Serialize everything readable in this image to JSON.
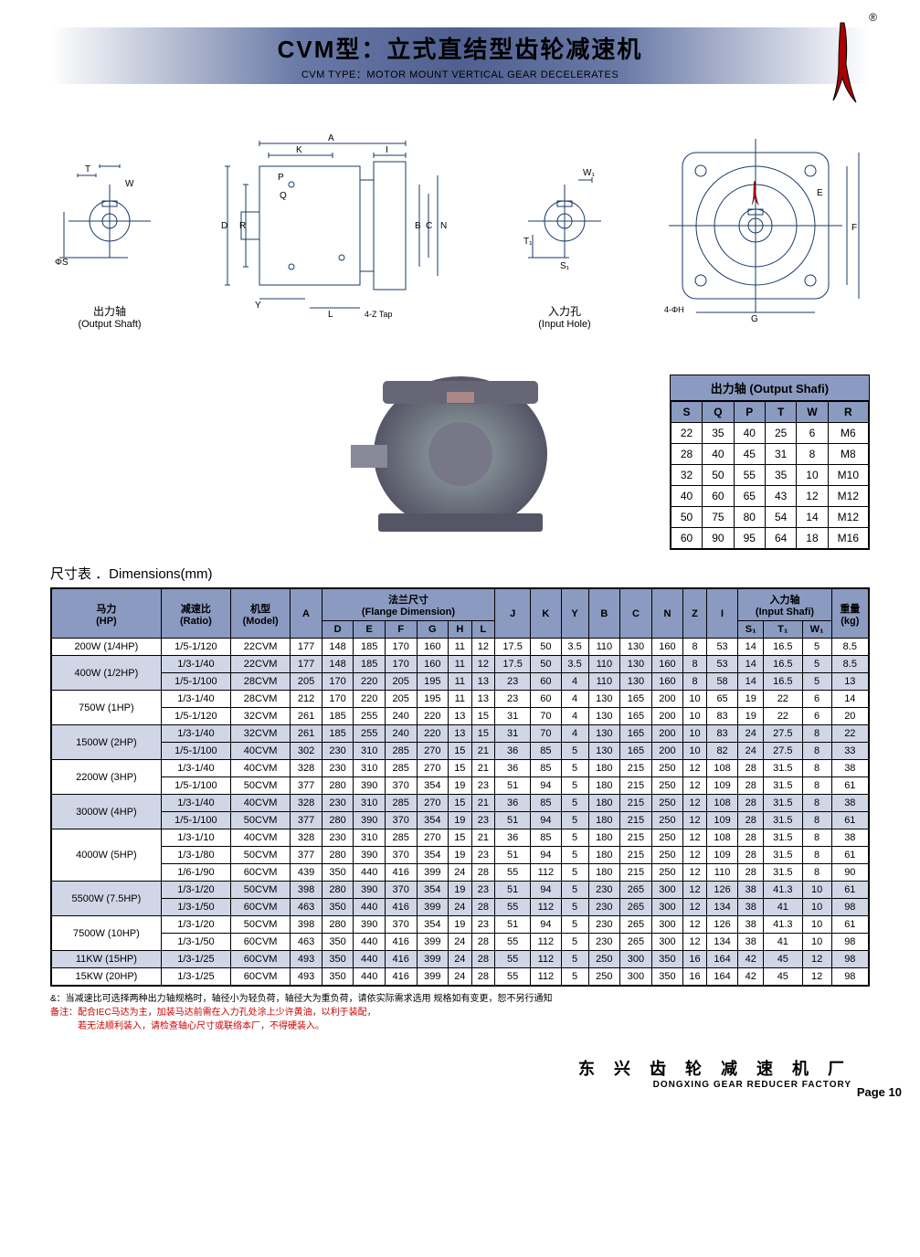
{
  "header": {
    "title_cn": "CVM型：立式直结型齿轮减速机",
    "title_en": "CVM TYPE：MOTOR MOUNT VERTICAL GEAR DECELERATES"
  },
  "diagrams": {
    "output_shaft": {
      "label_cn": "出力轴",
      "label_en": "(Output Shaft)",
      "dims": [
        "T",
        "W",
        "ΦS"
      ]
    },
    "main": {
      "dims": [
        "A",
        "K",
        "I",
        "P",
        "Q",
        "D",
        "R",
        "B",
        "C",
        "N",
        "Y",
        "L",
        "4-Z Tap"
      ]
    },
    "input_hole": {
      "label_cn": "入力孔",
      "label_en": "(Input Hole)",
      "dims": [
        "W₁",
        "T₁",
        "S₁"
      ]
    },
    "flange": {
      "dims": [
        "E",
        "F",
        "G",
        "4-ΦH"
      ]
    }
  },
  "output_shaft_table": {
    "title": "出力轴  (Output Shafi)",
    "headers": [
      "S",
      "Q",
      "P",
      "T",
      "W",
      "R"
    ],
    "rows": [
      [
        "22",
        "35",
        "40",
        "25",
        "6",
        "M6"
      ],
      [
        "28",
        "40",
        "45",
        "31",
        "8",
        "M8"
      ],
      [
        "32",
        "50",
        "55",
        "35",
        "10",
        "M10"
      ],
      [
        "40",
        "60",
        "65",
        "43",
        "12",
        "M12"
      ],
      [
        "50",
        "75",
        "80",
        "54",
        "14",
        "M12"
      ],
      [
        "60",
        "90",
        "95",
        "64",
        "18",
        "M16"
      ]
    ]
  },
  "dim_title": "尺寸表 ．Dimensions(mm)",
  "main_table": {
    "headers": {
      "hp": "马力\n(HP)",
      "ratio": "减速比\n(Ratio)",
      "model": "机型\n(Model)",
      "a": "A",
      "flange": "法兰尺寸\n(Flange Dimension)",
      "flange_sub": [
        "D",
        "E",
        "F",
        "G",
        "H",
        "L"
      ],
      "j": "J",
      "k": "K",
      "y": "Y",
      "b": "B",
      "c": "C",
      "n": "N",
      "z": "Z",
      "i": "I",
      "input": "入力轴\n(Input Shafi)",
      "input_sub": [
        "S₁",
        "T₁",
        "W₁"
      ],
      "weight": "重量\n(kg)"
    },
    "rows": [
      {
        "hp": "200W (1/4HP)",
        "ratio": "1/5-1/120",
        "model": "22CVM",
        "a": "177",
        "d": "148",
        "e": "185",
        "f": "170",
        "g": "160",
        "h": "11",
        "l": "12",
        "j": "17.5",
        "k": "50",
        "y": "3.5",
        "b": "110",
        "c": "130",
        "n": "160",
        "z": "8",
        "i": "53",
        "s1": "14",
        "t1": "16.5",
        "w1": "5",
        "wt": "8.5",
        "alt": false,
        "span": 1
      },
      {
        "hp": "400W (1/2HP)",
        "ratio": "1/3-1/40",
        "model": "22CVM",
        "a": "177",
        "d": "148",
        "e": "185",
        "f": "170",
        "g": "160",
        "h": "11",
        "l": "12",
        "j": "17.5",
        "k": "50",
        "y": "3.5",
        "b": "110",
        "c": "130",
        "n": "160",
        "z": "8",
        "i": "53",
        "s1": "14",
        "t1": "16.5",
        "w1": "5",
        "wt": "8.5",
        "alt": true,
        "span": 2
      },
      {
        "hp": "",
        "ratio": "1/5-1/100",
        "model": "28CVM",
        "a": "205",
        "d": "170",
        "e": "220",
        "f": "205",
        "g": "195",
        "h": "11",
        "l": "13",
        "j": "23",
        "k": "60",
        "y": "4",
        "b": "110",
        "c": "130",
        "n": "160",
        "z": "8",
        "i": "58",
        "s1": "14",
        "t1": "16.5",
        "w1": "5",
        "wt": "13",
        "alt": true
      },
      {
        "hp": "750W (1HP)",
        "ratio": "1/3-1/40",
        "model": "28CVM",
        "a": "212",
        "d": "170",
        "e": "220",
        "f": "205",
        "g": "195",
        "h": "11",
        "l": "13",
        "j": "23",
        "k": "60",
        "y": "4",
        "b": "130",
        "c": "165",
        "n": "200",
        "z": "10",
        "i": "65",
        "s1": "19",
        "t1": "22",
        "w1": "6",
        "wt": "14",
        "alt": false,
        "span": 2
      },
      {
        "hp": "",
        "ratio": "1/5-1/120",
        "model": "32CVM",
        "a": "261",
        "d": "185",
        "e": "255",
        "f": "240",
        "g": "220",
        "h": "13",
        "l": "15",
        "j": "31",
        "k": "70",
        "y": "4",
        "b": "130",
        "c": "165",
        "n": "200",
        "z": "10",
        "i": "83",
        "s1": "19",
        "t1": "22",
        "w1": "6",
        "wt": "20",
        "alt": false
      },
      {
        "hp": "1500W (2HP)",
        "ratio": "1/3-1/40",
        "model": "32CVM",
        "a": "261",
        "d": "185",
        "e": "255",
        "f": "240",
        "g": "220",
        "h": "13",
        "l": "15",
        "j": "31",
        "k": "70",
        "y": "4",
        "b": "130",
        "c": "165",
        "n": "200",
        "z": "10",
        "i": "83",
        "s1": "24",
        "t1": "27.5",
        "w1": "8",
        "wt": "22",
        "alt": true,
        "span": 2
      },
      {
        "hp": "",
        "ratio": "1/5-1/100",
        "model": "40CVM",
        "a": "302",
        "d": "230",
        "e": "310",
        "f": "285",
        "g": "270",
        "h": "15",
        "l": "21",
        "j": "36",
        "k": "85",
        "y": "5",
        "b": "130",
        "c": "165",
        "n": "200",
        "z": "10",
        "i": "82",
        "s1": "24",
        "t1": "27.5",
        "w1": "8",
        "wt": "33",
        "alt": true
      },
      {
        "hp": "2200W (3HP)",
        "ratio": "1/3-1/40",
        "model": "40CVM",
        "a": "328",
        "d": "230",
        "e": "310",
        "f": "285",
        "g": "270",
        "h": "15",
        "l": "21",
        "j": "36",
        "k": "85",
        "y": "5",
        "b": "180",
        "c": "215",
        "n": "250",
        "z": "12",
        "i": "108",
        "s1": "28",
        "t1": "31.5",
        "w1": "8",
        "wt": "38",
        "alt": false,
        "span": 2
      },
      {
        "hp": "",
        "ratio": "1/5-1/100",
        "model": "50CVM",
        "a": "377",
        "d": "280",
        "e": "390",
        "f": "370",
        "g": "354",
        "h": "19",
        "l": "23",
        "j": "51",
        "k": "94",
        "y": "5",
        "b": "180",
        "c": "215",
        "n": "250",
        "z": "12",
        "i": "109",
        "s1": "28",
        "t1": "31.5",
        "w1": "8",
        "wt": "61",
        "alt": false
      },
      {
        "hp": "3000W (4HP)",
        "ratio": "1/3-1/40",
        "model": "40CVM",
        "a": "328",
        "d": "230",
        "e": "310",
        "f": "285",
        "g": "270",
        "h": "15",
        "l": "21",
        "j": "36",
        "k": "85",
        "y": "5",
        "b": "180",
        "c": "215",
        "n": "250",
        "z": "12",
        "i": "108",
        "s1": "28",
        "t1": "31.5",
        "w1": "8",
        "wt": "38",
        "alt": true,
        "span": 2
      },
      {
        "hp": "",
        "ratio": "1/5-1/100",
        "model": "50CVM",
        "a": "377",
        "d": "280",
        "e": "390",
        "f": "370",
        "g": "354",
        "h": "19",
        "l": "23",
        "j": "51",
        "k": "94",
        "y": "5",
        "b": "180",
        "c": "215",
        "n": "250",
        "z": "12",
        "i": "109",
        "s1": "28",
        "t1": "31.5",
        "w1": "8",
        "wt": "61",
        "alt": true
      },
      {
        "hp": "4000W (5HP)",
        "ratio": "1/3-1/10",
        "model": "40CVM",
        "a": "328",
        "d": "230",
        "e": "310",
        "f": "285",
        "g": "270",
        "h": "15",
        "l": "21",
        "j": "36",
        "k": "85",
        "y": "5",
        "b": "180",
        "c": "215",
        "n": "250",
        "z": "12",
        "i": "108",
        "s1": "28",
        "t1": "31.5",
        "w1": "8",
        "wt": "38",
        "alt": false,
        "span": 3
      },
      {
        "hp": "",
        "ratio": "1/3-1/80",
        "model": "50CVM",
        "a": "377",
        "d": "280",
        "e": "390",
        "f": "370",
        "g": "354",
        "h": "19",
        "l": "23",
        "j": "51",
        "k": "94",
        "y": "5",
        "b": "180",
        "c": "215",
        "n": "250",
        "z": "12",
        "i": "109",
        "s1": "28",
        "t1": "31.5",
        "w1": "8",
        "wt": "61",
        "alt": false
      },
      {
        "hp": "",
        "ratio": "1/6-1/90",
        "model": "60CVM",
        "a": "439",
        "d": "350",
        "e": "440",
        "f": "416",
        "g": "399",
        "h": "24",
        "l": "28",
        "j": "55",
        "k": "112",
        "y": "5",
        "b": "180",
        "c": "215",
        "n": "250",
        "z": "12",
        "i": "110",
        "s1": "28",
        "t1": "31.5",
        "w1": "8",
        "wt": "90",
        "alt": false
      },
      {
        "hp": "5500W (7.5HP)",
        "ratio": "1/3-1/20",
        "model": "50CVM",
        "a": "398",
        "d": "280",
        "e": "390",
        "f": "370",
        "g": "354",
        "h": "19",
        "l": "23",
        "j": "51",
        "k": "94",
        "y": "5",
        "b": "230",
        "c": "265",
        "n": "300",
        "z": "12",
        "i": "126",
        "s1": "38",
        "t1": "41.3",
        "w1": "10",
        "wt": "61",
        "alt": true,
        "span": 2
      },
      {
        "hp": "",
        "ratio": "1/3-1/50",
        "model": "60CVM",
        "a": "463",
        "d": "350",
        "e": "440",
        "f": "416",
        "g": "399",
        "h": "24",
        "l": "28",
        "j": "55",
        "k": "112",
        "y": "5",
        "b": "230",
        "c": "265",
        "n": "300",
        "z": "12",
        "i": "134",
        "s1": "38",
        "t1": "41",
        "w1": "10",
        "wt": "98",
        "alt": true
      },
      {
        "hp": "7500W (10HP)",
        "ratio": "1/3-1/20",
        "model": "50CVM",
        "a": "398",
        "d": "280",
        "e": "390",
        "f": "370",
        "g": "354",
        "h": "19",
        "l": "23",
        "j": "51",
        "k": "94",
        "y": "5",
        "b": "230",
        "c": "265",
        "n": "300",
        "z": "12",
        "i": "126",
        "s1": "38",
        "t1": "41.3",
        "w1": "10",
        "wt": "61",
        "alt": false,
        "span": 2
      },
      {
        "hp": "",
        "ratio": "1/3-1/50",
        "model": "60CVM",
        "a": "463",
        "d": "350",
        "e": "440",
        "f": "416",
        "g": "399",
        "h": "24",
        "l": "28",
        "j": "55",
        "k": "112",
        "y": "5",
        "b": "230",
        "c": "265",
        "n": "300",
        "z": "12",
        "i": "134",
        "s1": "38",
        "t1": "41",
        "w1": "10",
        "wt": "98",
        "alt": false
      },
      {
        "hp": "11KW (15HP)",
        "ratio": "1/3-1/25",
        "model": "60CVM",
        "a": "493",
        "d": "350",
        "e": "440",
        "f": "416",
        "g": "399",
        "h": "24",
        "l": "28",
        "j": "55",
        "k": "112",
        "y": "5",
        "b": "250",
        "c": "300",
        "n": "350",
        "z": "16",
        "i": "164",
        "s1": "42",
        "t1": "45",
        "w1": "12",
        "wt": "98",
        "alt": true,
        "span": 1
      },
      {
        "hp": "15KW (20HP)",
        "ratio": "1/3-1/25",
        "model": "60CVM",
        "a": "493",
        "d": "350",
        "e": "440",
        "f": "416",
        "g": "399",
        "h": "24",
        "l": "28",
        "j": "55",
        "k": "112",
        "y": "5",
        "b": "250",
        "c": "300",
        "n": "350",
        "z": "16",
        "i": "164",
        "s1": "42",
        "t1": "45",
        "w1": "12",
        "wt": "98",
        "alt": false,
        "span": 1
      }
    ]
  },
  "notes": {
    "n1": "&：当减速比可选择两种出力轴规格时，轴径小为轻负荷，轴径大为重负荷，请依实际需求选用        规格如有变更，恕不另行通知",
    "n2": "备注：配合IEC马达为主，加装马达前需在入力孔处涂上少许黄油，以利于装配，",
    "n3": "　　　若无法顺利装入，请检查轴心尺寸或联络本厂，不得硬装入。"
  },
  "footer": {
    "cn": "东 兴 齿 轮 减 速 机 厂",
    "en": "DONGXING GEAR REDUCER FACTORY",
    "page": "Page 10"
  }
}
